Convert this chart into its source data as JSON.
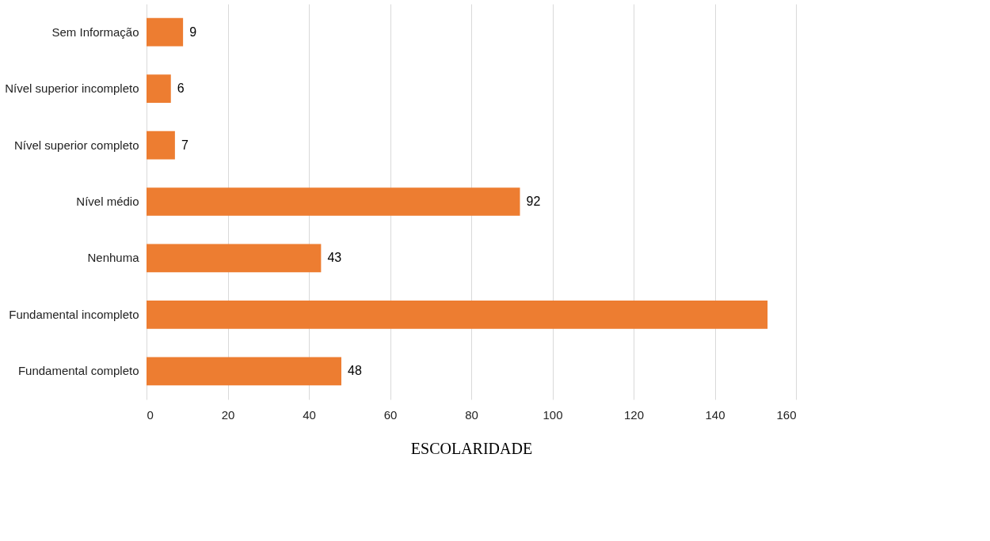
{
  "chart_data": {
    "type": "bar",
    "orientation": "horizontal",
    "xlabel": "ESCOLARIDADE",
    "categories": [
      "Sem Informação",
      "Nível superior incompleto",
      "Nível superior completo",
      "Nível médio",
      "Nenhuma",
      "Fundamental incompleto",
      "Fundamental completo"
    ],
    "values": [
      9,
      6,
      7,
      92,
      43,
      153,
      48
    ],
    "value_labels": [
      "9",
      "6",
      "7",
      "92",
      "43",
      null,
      "48"
    ],
    "color": "#ed7d31",
    "xlim": [
      0,
      160
    ],
    "xticks": [
      0,
      20,
      40,
      60,
      80,
      100,
      120,
      140,
      160
    ],
    "grid": "x"
  }
}
